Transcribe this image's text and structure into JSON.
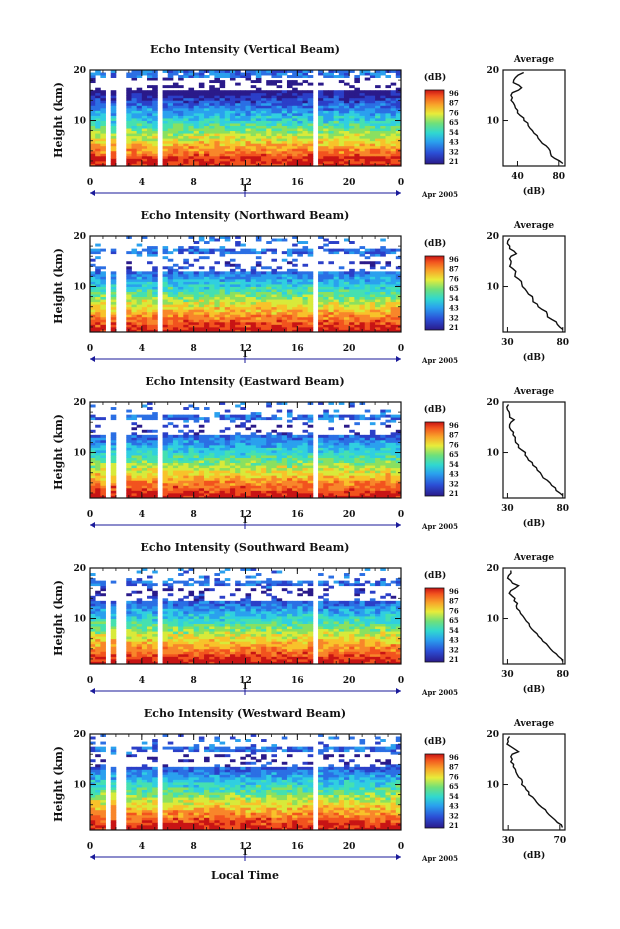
{
  "figure": {
    "xlabel": "Local Time",
    "date_label": "Apr 2005",
    "day_label": "1"
  },
  "chart_data": [
    {
      "type": "heatmap",
      "title": "Echo Intensity (Vertical Beam)",
      "ylabel": "Height (km)",
      "x_ticks": [
        "0",
        "4",
        "8",
        "12",
        "16",
        "20",
        "0"
      ],
      "y_ticks": [
        "10",
        "20"
      ],
      "xlim": [
        0,
        24
      ],
      "ylim": [
        1,
        20
      ],
      "colorbar": {
        "unit": "(dB)",
        "ticks": [
          "96",
          "87",
          "76",
          "65",
          "54",
          "43",
          "32",
          "21"
        ]
      },
      "profile": {
        "title": "Average",
        "xlabel": "(dB)",
        "x_ticks": [
          "40",
          "80"
        ],
        "xlim": [
          26,
          86
        ],
        "heights": [
          1.5,
          2.5,
          3.5,
          4.5,
          5.5,
          6.5,
          7.5,
          8.5,
          9.5,
          10.5,
          11.5,
          12.5,
          13.5,
          14.5,
          15.5,
          16.5,
          17.5,
          18.5,
          19.5
        ],
        "values": [
          84,
          76,
          72,
          70,
          64,
          60,
          56,
          52,
          50,
          46,
          40,
          38,
          36,
          35,
          35,
          44,
          36,
          38,
          46
        ]
      }
    },
    {
      "type": "heatmap",
      "title": "Echo Intensity (Northward Beam)",
      "ylabel": "Height (km)",
      "x_ticks": [
        "0",
        "4",
        "8",
        "12",
        "16",
        "20",
        "0"
      ],
      "y_ticks": [
        "10",
        "20"
      ],
      "xlim": [
        0,
        24
      ],
      "ylim": [
        1,
        20
      ],
      "colorbar": {
        "unit": "(dB)",
        "ticks": [
          "96",
          "87",
          "76",
          "65",
          "54",
          "43",
          "32",
          "21"
        ]
      },
      "profile": {
        "title": "Average",
        "xlabel": "(dB)",
        "x_ticks": [
          "30",
          "80"
        ],
        "xlim": [
          26,
          82
        ],
        "heights": [
          1.5,
          2.5,
          3.5,
          4.5,
          5.5,
          6.5,
          7.5,
          8.5,
          9.5,
          10.5,
          11.5,
          12.5,
          13.5,
          14.5,
          15.5,
          16.5,
          17.5,
          18.5,
          19.5
        ],
        "values": [
          80,
          75,
          70,
          66,
          61,
          57,
          53,
          49,
          46,
          43,
          40,
          37,
          35,
          33,
          32,
          38,
          32,
          30,
          32
        ]
      }
    },
    {
      "type": "heatmap",
      "title": "Echo Intensity (Eastward Beam)",
      "ylabel": "Height (km)",
      "x_ticks": [
        "0",
        "4",
        "8",
        "12",
        "16",
        "20",
        "0"
      ],
      "y_ticks": [
        "10",
        "20"
      ],
      "xlim": [
        0,
        24
      ],
      "ylim": [
        1,
        20
      ],
      "colorbar": {
        "unit": "(dB)",
        "ticks": [
          "96",
          "87",
          "76",
          "65",
          "54",
          "43",
          "32",
          "21"
        ]
      },
      "profile": {
        "title": "Average",
        "xlabel": "(dB)",
        "x_ticks": [
          "30",
          "80"
        ],
        "xlim": [
          26,
          82
        ],
        "heights": [
          1.5,
          2.5,
          3.5,
          4.5,
          5.5,
          6.5,
          7.5,
          8.5,
          9.5,
          10.5,
          11.5,
          12.5,
          13.5,
          14.5,
          15.5,
          16.5,
          17.5,
          18.5,
          19.5
        ],
        "values": [
          80,
          74,
          70,
          66,
          61,
          57,
          53,
          49,
          46,
          43,
          40,
          37,
          35,
          33,
          32,
          36,
          32,
          30,
          31
        ]
      }
    },
    {
      "type": "heatmap",
      "title": "Echo Intensity (Southward Beam)",
      "ylabel": "Height (km)",
      "x_ticks": [
        "0",
        "4",
        "8",
        "12",
        "16",
        "20",
        "0"
      ],
      "y_ticks": [
        "10",
        "20"
      ],
      "xlim": [
        0,
        24
      ],
      "ylim": [
        1,
        20
      ],
      "colorbar": {
        "unit": "(dB)",
        "ticks": [
          "96",
          "87",
          "76",
          "65",
          "54",
          "43",
          "32",
          "21"
        ]
      },
      "profile": {
        "title": "Average",
        "xlabel": "(dB)",
        "x_ticks": [
          "30",
          "80"
        ],
        "xlim": [
          26,
          82
        ],
        "heights": [
          1.5,
          2.5,
          3.5,
          4.5,
          5.5,
          6.5,
          7.5,
          8.5,
          9.5,
          10.5,
          11.5,
          12.5,
          13.5,
          14.5,
          15.5,
          16.5,
          17.5,
          18.5,
          19.5
        ],
        "values": [
          80,
          76,
          71,
          67,
          62,
          58,
          54,
          50,
          47,
          44,
          41,
          38,
          36,
          34,
          33,
          40,
          33,
          31,
          33
        ]
      }
    },
    {
      "type": "heatmap",
      "title": "Echo Intensity (Westward Beam)",
      "ylabel": "Height (km)",
      "x_ticks": [
        "0",
        "4",
        "8",
        "12",
        "16",
        "20",
        "0"
      ],
      "y_ticks": [
        "10",
        "20"
      ],
      "xlim": [
        0,
        24
      ],
      "ylim": [
        1,
        20
      ],
      "colorbar": {
        "unit": "(dB)",
        "ticks": [
          "96",
          "87",
          "76",
          "65",
          "54",
          "43",
          "32",
          "21"
        ]
      },
      "profile": {
        "title": "Average",
        "xlabel": "(dB)",
        "x_ticks": [
          "30",
          "70"
        ],
        "xlim": [
          26,
          74
        ],
        "heights": [
          1.5,
          2.5,
          3.5,
          4.5,
          5.5,
          6.5,
          7.5,
          8.5,
          9.5,
          10.5,
          11.5,
          12.5,
          13.5,
          14.5,
          15.5,
          16.5,
          17.5,
          18.5,
          19.5
        ],
        "values": [
          72,
          68,
          64,
          60,
          56,
          52,
          49,
          46,
          43,
          41,
          38,
          36,
          34,
          32,
          32,
          38,
          32,
          30,
          31
        ]
      }
    }
  ]
}
